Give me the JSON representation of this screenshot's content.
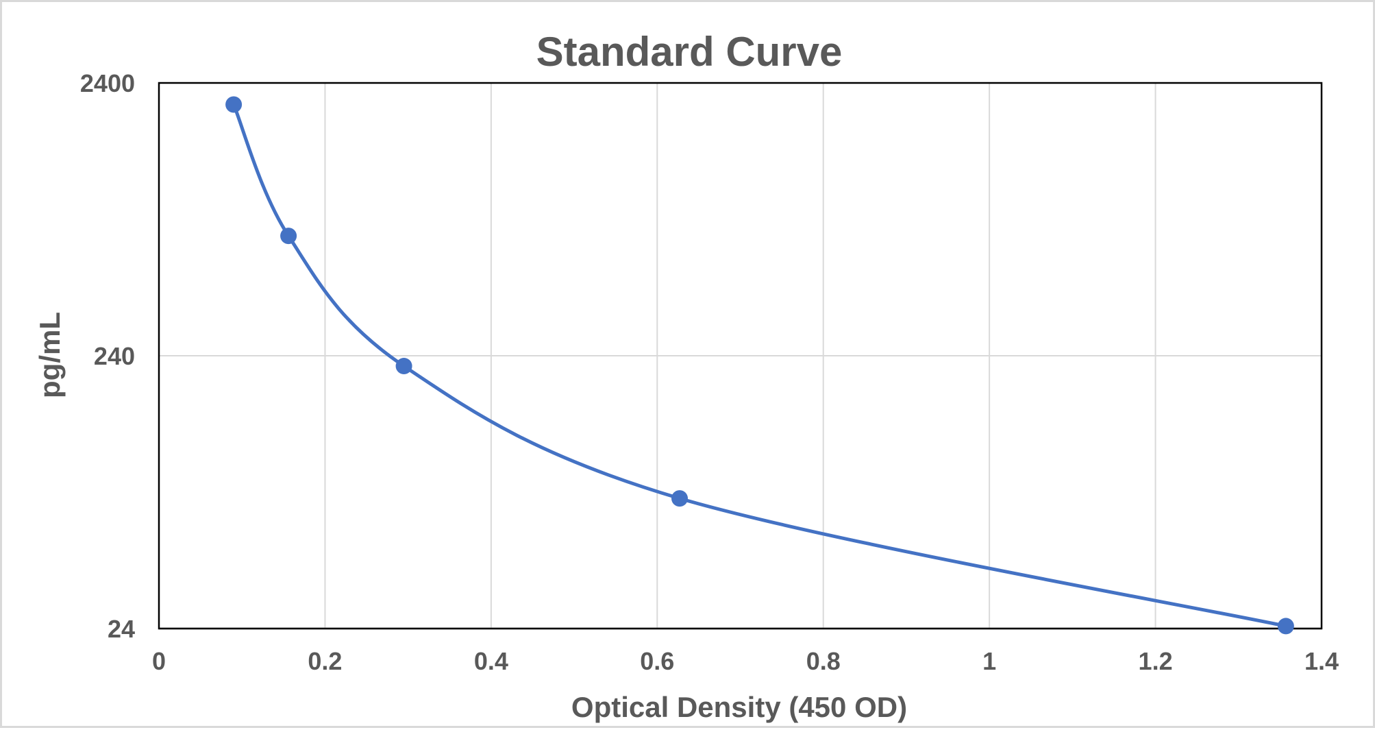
{
  "chart_data": {
    "type": "scatter",
    "title": "Standard Curve",
    "xlabel": "Optical Density (450 OD)",
    "ylabel": "pg/mL",
    "xlim": [
      0,
      1.4
    ],
    "ylim": [
      24,
      2400
    ],
    "y_scale": "log",
    "x_ticks": [
      "0",
      "0.2",
      "0.4",
      "0.6",
      "0.8",
      "1",
      "1.2",
      "1.4"
    ],
    "x_tick_values": [
      0,
      0.2,
      0.4,
      0.6,
      0.8,
      1.0,
      1.2,
      1.4
    ],
    "y_ticks": [
      "24",
      "240",
      "2400"
    ],
    "y_tick_values": [
      24,
      240,
      2400
    ],
    "grid": true,
    "smooth_line": true,
    "marker": "circle",
    "series_color": "#4472c4",
    "series": [
      {
        "x": [
          0.09,
          0.156,
          0.295,
          0.627,
          1.357
        ],
        "y": [
          2000,
          660,
          220,
          72,
          24.5
        ]
      }
    ]
  }
}
